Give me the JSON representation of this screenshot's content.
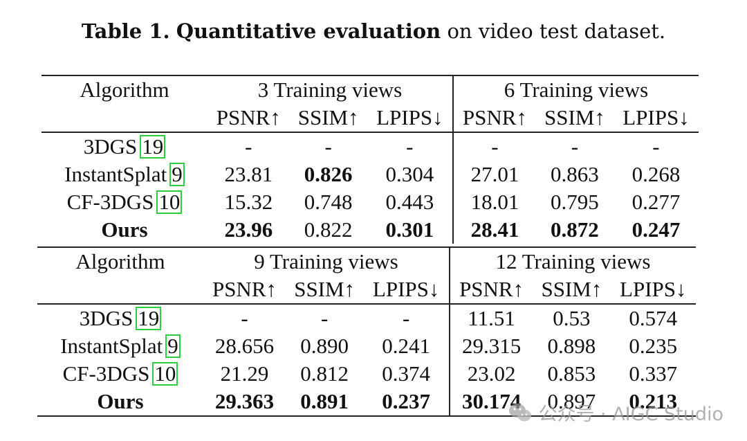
{
  "caption": {
    "label": "Table 1.",
    "bold_title": "Quantitative evaluation",
    "rest": "on video test dataset."
  },
  "top_table": {
    "algorithm_header": "Algorithm",
    "group_a": "3 Training views",
    "group_b": "6 Training views",
    "metrics": [
      "PSNR↑",
      "SSIM↑",
      "LPIPS↓",
      "PSNR↑",
      "SSIM↑",
      "LPIPS↓"
    ],
    "rows": [
      {
        "name": "3DGS",
        "cite": "19",
        "values": [
          "-",
          "-",
          "-",
          "-",
          "-",
          "-"
        ]
      },
      {
        "name": "InstantSplat",
        "cite": "9",
        "values": [
          "23.81",
          "0.826",
          "0.304",
          "27.01",
          "0.863",
          "0.268"
        ]
      },
      {
        "name": "CF-3DGS",
        "cite": "10",
        "values": [
          "15.32",
          "0.748",
          "0.443",
          "18.01",
          "0.795",
          "0.277"
        ]
      },
      {
        "name": "Ours",
        "cite": "",
        "values": [
          "23.96",
          "0.822",
          "0.301",
          "28.41",
          "0.872",
          "0.247"
        ]
      }
    ]
  },
  "bottom_table": {
    "algorithm_header": "Algorithm",
    "group_a": "9 Training views",
    "group_b": "12 Training views",
    "metrics": [
      "PSNR↑",
      "SSIM↑",
      "LPIPS↓",
      "PSNR↑",
      "SSIM↑",
      "LPIPS↓"
    ],
    "rows": [
      {
        "name": "3DGS",
        "cite": "19",
        "values": [
          "-",
          "-",
          "-",
          "11.51",
          "0.53",
          "0.574"
        ]
      },
      {
        "name": "InstantSplat",
        "cite": "9",
        "values": [
          "28.656",
          "0.890",
          "0.241",
          "29.315",
          "0.898",
          "0.235"
        ]
      },
      {
        "name": "CF-3DGS",
        "cite": "10",
        "values": [
          "21.29",
          "0.812",
          "0.374",
          "23.02",
          "0.853",
          "0.337"
        ]
      },
      {
        "name": "Ours",
        "cite": "",
        "values": [
          "29.363",
          "0.891",
          "0.237",
          "30.174",
          "0.897",
          "0.213"
        ]
      }
    ]
  },
  "watermark": {
    "icon": "wechat-icon",
    "text": "公众号 · AIGC Studio"
  }
}
